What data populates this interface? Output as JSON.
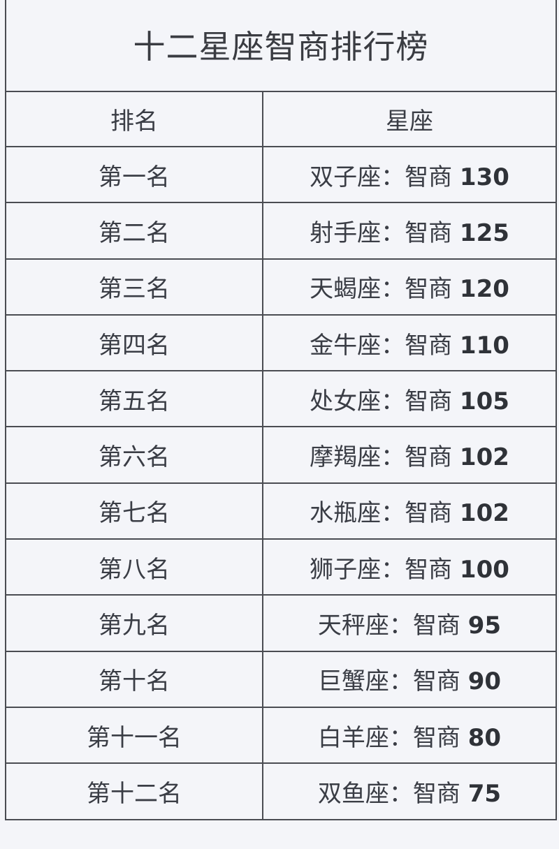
{
  "title": "十二星座智商排行榜",
  "headers": {
    "rank": "排名",
    "sign": "星座"
  },
  "rows": [
    {
      "rank": "第一名",
      "sign": "双子座：智商",
      "iq": "130"
    },
    {
      "rank": "第二名",
      "sign": "射手座：智商",
      "iq": "125"
    },
    {
      "rank": "第三名",
      "sign": "天蝎座：智商",
      "iq": "120"
    },
    {
      "rank": "第四名",
      "sign": "金牛座：智商",
      "iq": "110"
    },
    {
      "rank": "第五名",
      "sign": "处女座：智商",
      "iq": "105"
    },
    {
      "rank": "第六名",
      "sign": "摩羯座：智商",
      "iq": "102"
    },
    {
      "rank": "第七名",
      "sign": "水瓶座：智商",
      "iq": "102"
    },
    {
      "rank": "第八名",
      "sign": "狮子座：智商",
      "iq": "100"
    },
    {
      "rank": "第九名",
      "sign": "天秤座：智商",
      "iq": "95"
    },
    {
      "rank": "第十名",
      "sign": "巨蟹座：智商",
      "iq": "90"
    },
    {
      "rank": "第十一名",
      "sign": "白羊座：智商",
      "iq": "80"
    },
    {
      "rank": "第十二名",
      "sign": "双鱼座：智商",
      "iq": "75"
    }
  ]
}
